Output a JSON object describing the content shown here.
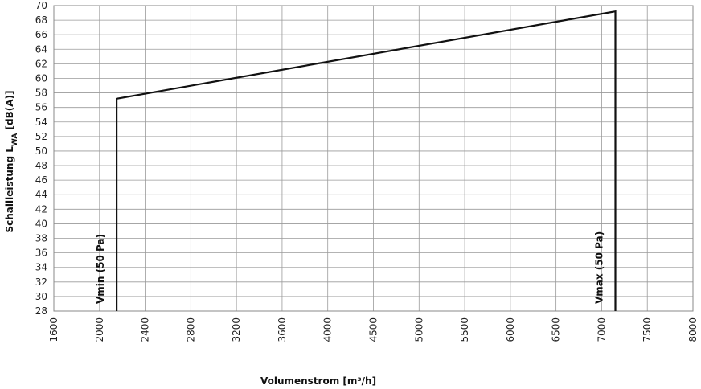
{
  "chart_data": {
    "type": "line",
    "xlabel": "Volumenstrom  [m³/h]",
    "ylabel": "Schallleistung L_WA  [dB(A)]",
    "x_ticks": [
      1600,
      2000,
      2400,
      2800,
      3200,
      3600,
      4000,
      4500,
      5000,
      5500,
      6000,
      6500,
      7000,
      7500,
      8000
    ],
    "ylim": [
      28,
      70
    ],
    "y_step": 2,
    "grid": true,
    "series": [
      {
        "x": [
          2150,
          2150,
          7150,
          7150
        ],
        "y": [
          28,
          57.2,
          69.2,
          28
        ]
      }
    ],
    "annotations": [
      {
        "text": "Vmin (50 Pa)",
        "x": 2150
      },
      {
        "text": "Vmax (50 Pa)",
        "x": 7150
      }
    ]
  }
}
